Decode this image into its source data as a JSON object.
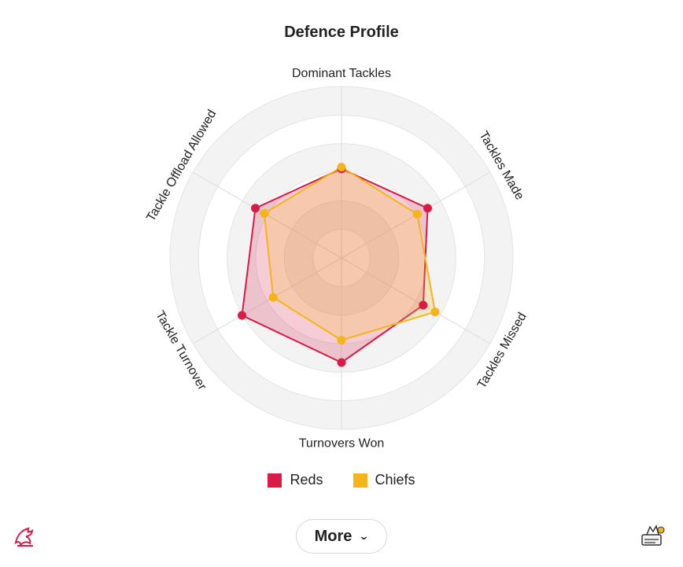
{
  "title": "Defence Profile",
  "chart_data": {
    "type": "radar",
    "title": "Defence Profile",
    "axes": [
      "Dominant Tackles",
      "Tackles Made",
      "Tackles Missed",
      "Turnovers Won",
      "Tackle Turnover",
      "Tackle Offload Allowed"
    ],
    "range": [
      0,
      100
    ],
    "rings": 6,
    "grid": true,
    "legend_position": "bottom-center",
    "series": [
      {
        "name": "Reds",
        "color": "#d81b47",
        "values": [
          52,
          58,
          55,
          61,
          67,
          58
        ]
      },
      {
        "name": "Chiefs",
        "color": "#f4b41a",
        "values": [
          53,
          51,
          63,
          48,
          46,
          52
        ]
      }
    ]
  },
  "legend": [
    {
      "label": "Reds",
      "color": "#d81b47"
    },
    {
      "label": "Chiefs",
      "color": "#f4b41a"
    }
  ],
  "more_button": {
    "label": "More",
    "icon": "chevron-down-icon"
  },
  "logos": {
    "left": "reds-logo-icon",
    "right": "chiefs-logo-icon"
  }
}
